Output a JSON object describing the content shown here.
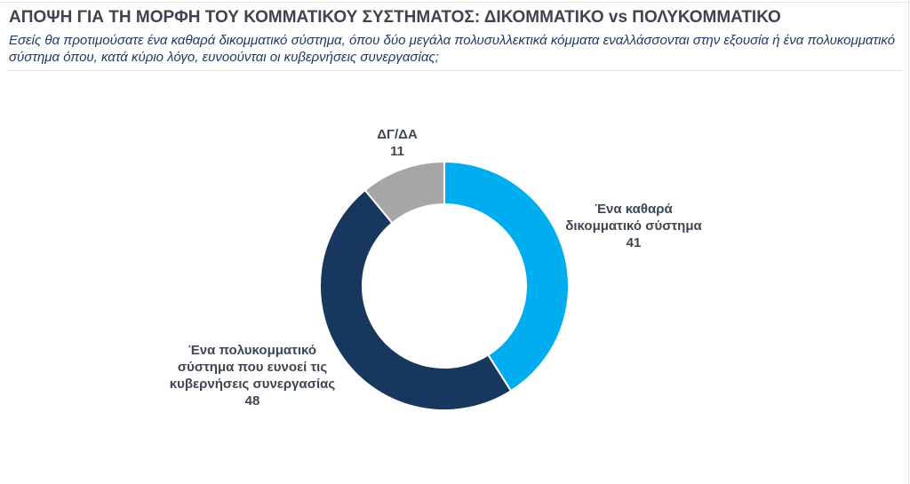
{
  "header": {
    "title": "ΑΠΟΨΗ ΓΙΑ ΤΗ ΜΟΡΦΗ ΤΟΥ ΚΟΜΜΑΤΙΚΟΥ ΣΥΣΤΗΜΑΤΟΣ: ΔΙΚΟΜΜΑΤΙΚΟ vs ΠΟΛΥΚΟΜΜΑΤΙΚΟ",
    "question": "Εσείς θα προτιμούσατε ένα καθαρά δικομματικό σύστημα, όπου δύο μεγάλα πολυσυλλεκτικά κόμματα εναλλάσσονται στην εξουσία ή ένα πολυκομματικό σύστημα όπου, κατά κύριο λόγο, ευνοούνται οι κυβερνήσεις συνεργασίας;"
  },
  "chart_data": {
    "type": "pie",
    "subtype": "donut",
    "title": "ΑΠΟΨΗ ΓΙΑ ΤΗ ΜΟΡΦΗ ΤΟΥ ΚΟΜΜΑΤΙΚΟΥ ΣΥΣΤΗΜΑΤΟΣ: ΔΙΚΟΜΜΑΤΙΚΟ vs ΠΟΛΥΚΟΜΜΑΤΙΚΟ",
    "total": 100,
    "start_angle_deg": 0,
    "direction": "clockwise",
    "inner_radius_px": 92,
    "outer_radius_px": 140,
    "legend": "none",
    "labels_position": "outside",
    "slice_border_color": "#ffffff",
    "slices": [
      {
        "label": "Ένα καθαρά δικομματικό σύστημα",
        "label_lines": [
          "Ένα καθαρά",
          "δικομματικό σύστημα"
        ],
        "value": 41,
        "color": "#00AEEF"
      },
      {
        "label": "Ένα πολυκομματικό σύστημα που ευνοεί τις κυβερνήσεις συνεργασίας",
        "label_lines": [
          "Ένα πολυκομματικό",
          "σύστημα που ευνοεί τις",
          "κυβερνήσεις συνεργασίας"
        ],
        "value": 48,
        "color": "#17375E"
      },
      {
        "label": "ΔΓ/ΔΑ",
        "label_lines": [
          "ΔΓ/ΔΑ"
        ],
        "value": 11,
        "color": "#A6A6A6"
      }
    ]
  }
}
